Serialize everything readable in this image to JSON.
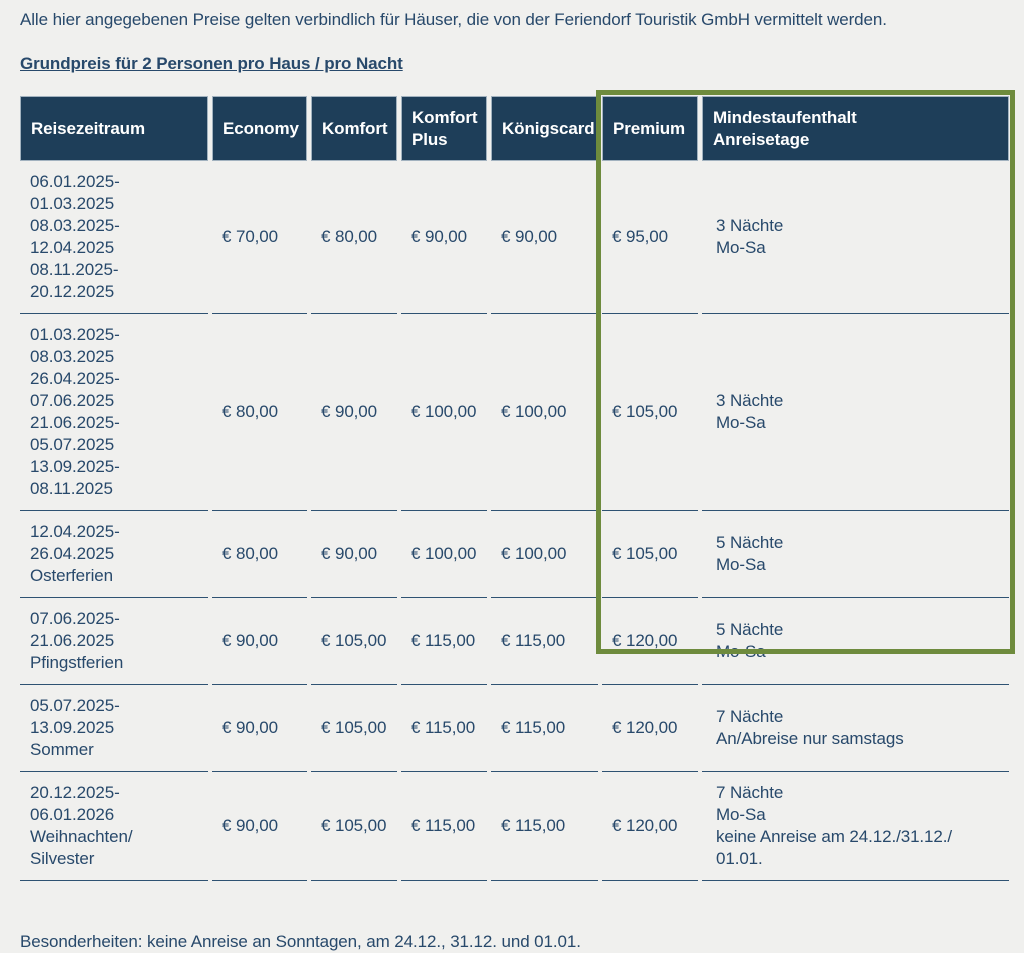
{
  "page": {
    "intro": "Alle hier angegebenen Preise gelten verbindlich für Häuser, die von der Feriendorf Touristik GmbH vermittelt werden.",
    "heading": "Grundpreis für 2 Personen pro Haus / pro Nacht",
    "footer": "Besonderheiten: keine Anreise an Sonntagen, am 24.12., 31.12. und 01.01."
  },
  "colors": {
    "background": "#f0f0ee",
    "header_bg": "#1e3e59",
    "text": "#28496b",
    "row_separator": "#2e5272",
    "highlight_border": "#6e8b3d"
  },
  "table": {
    "columns": [
      {
        "key": "reisezeitraum",
        "lines": [
          "Reisezeitraum"
        ]
      },
      {
        "key": "economy",
        "lines": [
          "Economy"
        ]
      },
      {
        "key": "komfort",
        "lines": [
          "Komfort"
        ]
      },
      {
        "key": "komfort-plus",
        "lines": [
          "Komfort",
          "Plus"
        ]
      },
      {
        "key": "koenigscard",
        "lines": [
          "Königscard"
        ]
      },
      {
        "key": "premium",
        "lines": [
          "Premium"
        ]
      },
      {
        "key": "mindestaufenthalt",
        "lines": [
          "Mindestaufenthalt",
          "Anreisetage"
        ]
      }
    ],
    "price_column_keys": [
      "economy",
      "komfort",
      "komfort-plus",
      "koenigscard",
      "premium"
    ],
    "rows": [
      {
        "period": [
          "06.01.2025-01.03.2025",
          "08.03.2025-12.04.2025",
          "08.11.2025-20.12.2025"
        ],
        "prices": [
          "€ 70,00",
          "€ 80,00",
          "€ 90,00",
          "€ 90,00",
          "€ 95,00"
        ],
        "min_stay": [
          "3 Nächte",
          "Mo-Sa"
        ]
      },
      {
        "period": [
          "01.03.2025-08.03.2025",
          "26.04.2025-07.06.2025",
          "21.06.2025-05.07.2025",
          "13.09.2025-08.11.2025"
        ],
        "prices": [
          "€ 80,00",
          "€ 90,00",
          "€ 100,00",
          "€ 100,00",
          "€ 105,00"
        ],
        "min_stay": [
          "3 Nächte",
          "Mo-Sa"
        ]
      },
      {
        "period": [
          "12.04.2025-26.04.2025",
          "Osterferien"
        ],
        "prices": [
          "€ 80,00",
          "€ 90,00",
          "€ 100,00",
          "€ 100,00",
          "€ 105,00"
        ],
        "min_stay": [
          "5 Nächte",
          "Mo-Sa"
        ]
      },
      {
        "period": [
          "07.06.2025-21.06.2025",
          "Pfingstferien"
        ],
        "prices": [
          "€ 90,00",
          "€ 105,00",
          "€ 115,00",
          "€ 115,00",
          "€ 120,00"
        ],
        "min_stay": [
          "5 Nächte",
          "Mo-Sa"
        ]
      },
      {
        "period": [
          "05.07.2025-13.09.2025",
          "Sommer"
        ],
        "prices": [
          "€ 90,00",
          "€ 105,00",
          "€ 115,00",
          "€ 115,00",
          "€ 120,00"
        ],
        "min_stay": [
          "7 Nächte",
          "An/Abreise nur samstags"
        ]
      },
      {
        "period": [
          "20.12.2025-06.01.2026",
          "Weihnachten/",
          "Silvester"
        ],
        "prices": [
          "€ 90,00",
          "€ 105,00",
          "€ 115,00",
          "€ 115,00",
          "€ 120,00"
        ],
        "min_stay": [
          "7 Nächte",
          "Mo-Sa",
          "keine Anreise am 24.12./31.12./ 01.01."
        ]
      }
    ]
  }
}
